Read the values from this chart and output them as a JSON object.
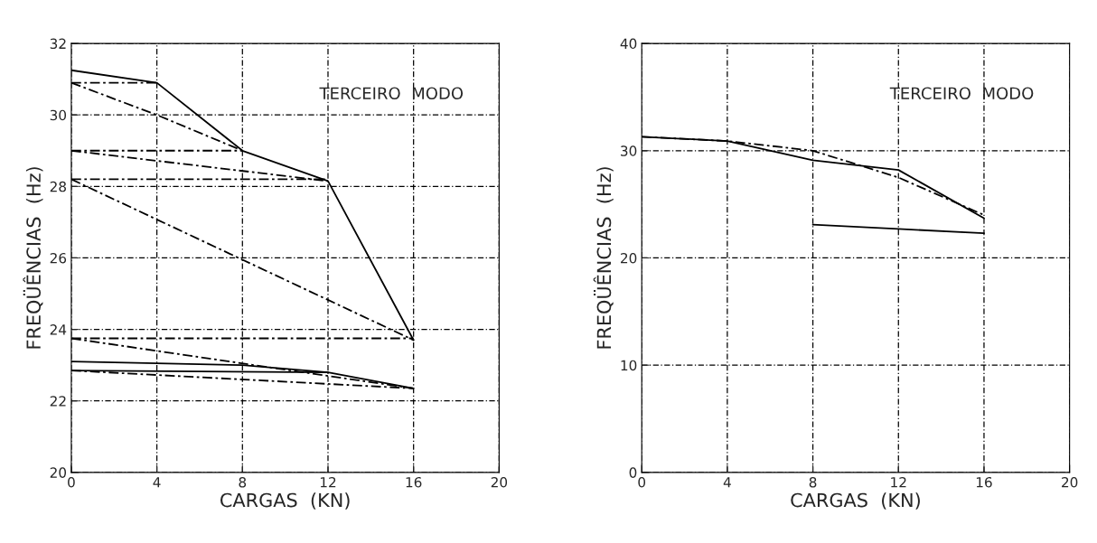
{
  "chart_data": [
    {
      "type": "line",
      "xlabel": "CARGAS  (KN)",
      "ylabel": "FREQÜÊNCIAS  (Hz)",
      "annotations": [
        "TERCEIRO  MODO"
      ],
      "xlim": [
        0,
        20
      ],
      "xticks": [
        0,
        4,
        8,
        12,
        16,
        20
      ],
      "ylim": [
        20,
        32
      ],
      "yticks": [
        20,
        22,
        24,
        26,
        28,
        30,
        32
      ],
      "grid": true,
      "legend": false,
      "series": [
        {
          "color": "#000000",
          "line_style": "solid",
          "x": [
            0,
            4,
            8,
            12,
            16
          ],
          "values": [
            31.25,
            30.9,
            29.0,
            28.15,
            23.7
          ]
        },
        {
          "color": "#000000",
          "line_style": "dashed",
          "x": [
            0,
            4,
            8
          ],
          "values": [
            30.9,
            30.0,
            29.0
          ]
        },
        {
          "color": "#000000",
          "line_style": "dashed",
          "x": [
            0,
            4
          ],
          "values": [
            30.9,
            30.9
          ]
        },
        {
          "color": "#000000",
          "line_style": "dashed",
          "x": [
            0,
            8
          ],
          "values": [
            29.0,
            29.0
          ]
        },
        {
          "color": "#000000",
          "line_style": "dashed",
          "x": [
            0,
            12
          ],
          "values": [
            29.0,
            28.15
          ]
        },
        {
          "color": "#000000",
          "line_style": "dashed",
          "x": [
            0,
            12
          ],
          "values": [
            28.2,
            28.2
          ]
        },
        {
          "color": "#000000",
          "line_style": "dashed",
          "x": [
            0,
            16
          ],
          "values": [
            28.2,
            23.7
          ]
        },
        {
          "color": "#000000",
          "line_style": "dashed",
          "x": [
            0,
            16
          ],
          "values": [
            23.75,
            23.75
          ]
        },
        {
          "color": "#000000",
          "line_style": "dashed",
          "x": [
            0,
            16
          ],
          "values": [
            23.75,
            22.35
          ]
        },
        {
          "color": "#000000",
          "line_style": "solid",
          "x": [
            0,
            4,
            8,
            12,
            16
          ],
          "values": [
            23.1,
            23.05,
            23.0,
            22.8,
            22.35
          ]
        },
        {
          "color": "#000000",
          "line_style": "solid",
          "x": [
            0,
            12
          ],
          "values": [
            22.85,
            22.8
          ]
        },
        {
          "color": "#000000",
          "line_style": "dashed",
          "x": [
            0,
            16
          ],
          "values": [
            22.85,
            22.35
          ]
        }
      ]
    },
    {
      "type": "line",
      "xlabel": "CARGAS  (KN)",
      "ylabel": "FREQÜÊNCIAS  (Hz)",
      "annotations": [
        "TERCEIRO  MODO"
      ],
      "xlim": [
        0,
        20
      ],
      "xticks": [
        0,
        4,
        8,
        12,
        16,
        20
      ],
      "ylim": [
        0,
        40
      ],
      "yticks": [
        0,
        10,
        20,
        30,
        40
      ],
      "grid": true,
      "legend": false,
      "series": [
        {
          "color": "#000000",
          "line_style": "solid",
          "x": [
            0,
            4,
            8,
            12,
            16
          ],
          "values": [
            31.3,
            30.9,
            29.1,
            28.2,
            23.7
          ]
        },
        {
          "color": "#000000",
          "line_style": "dashed",
          "x": [
            0,
            4,
            8,
            12,
            16
          ],
          "values": [
            31.3,
            30.9,
            30.0,
            27.5,
            24.0
          ]
        },
        {
          "color": "#000000",
          "line_style": "solid",
          "x": [
            8,
            12,
            16
          ],
          "values": [
            23.1,
            22.7,
            22.3
          ]
        }
      ]
    }
  ]
}
